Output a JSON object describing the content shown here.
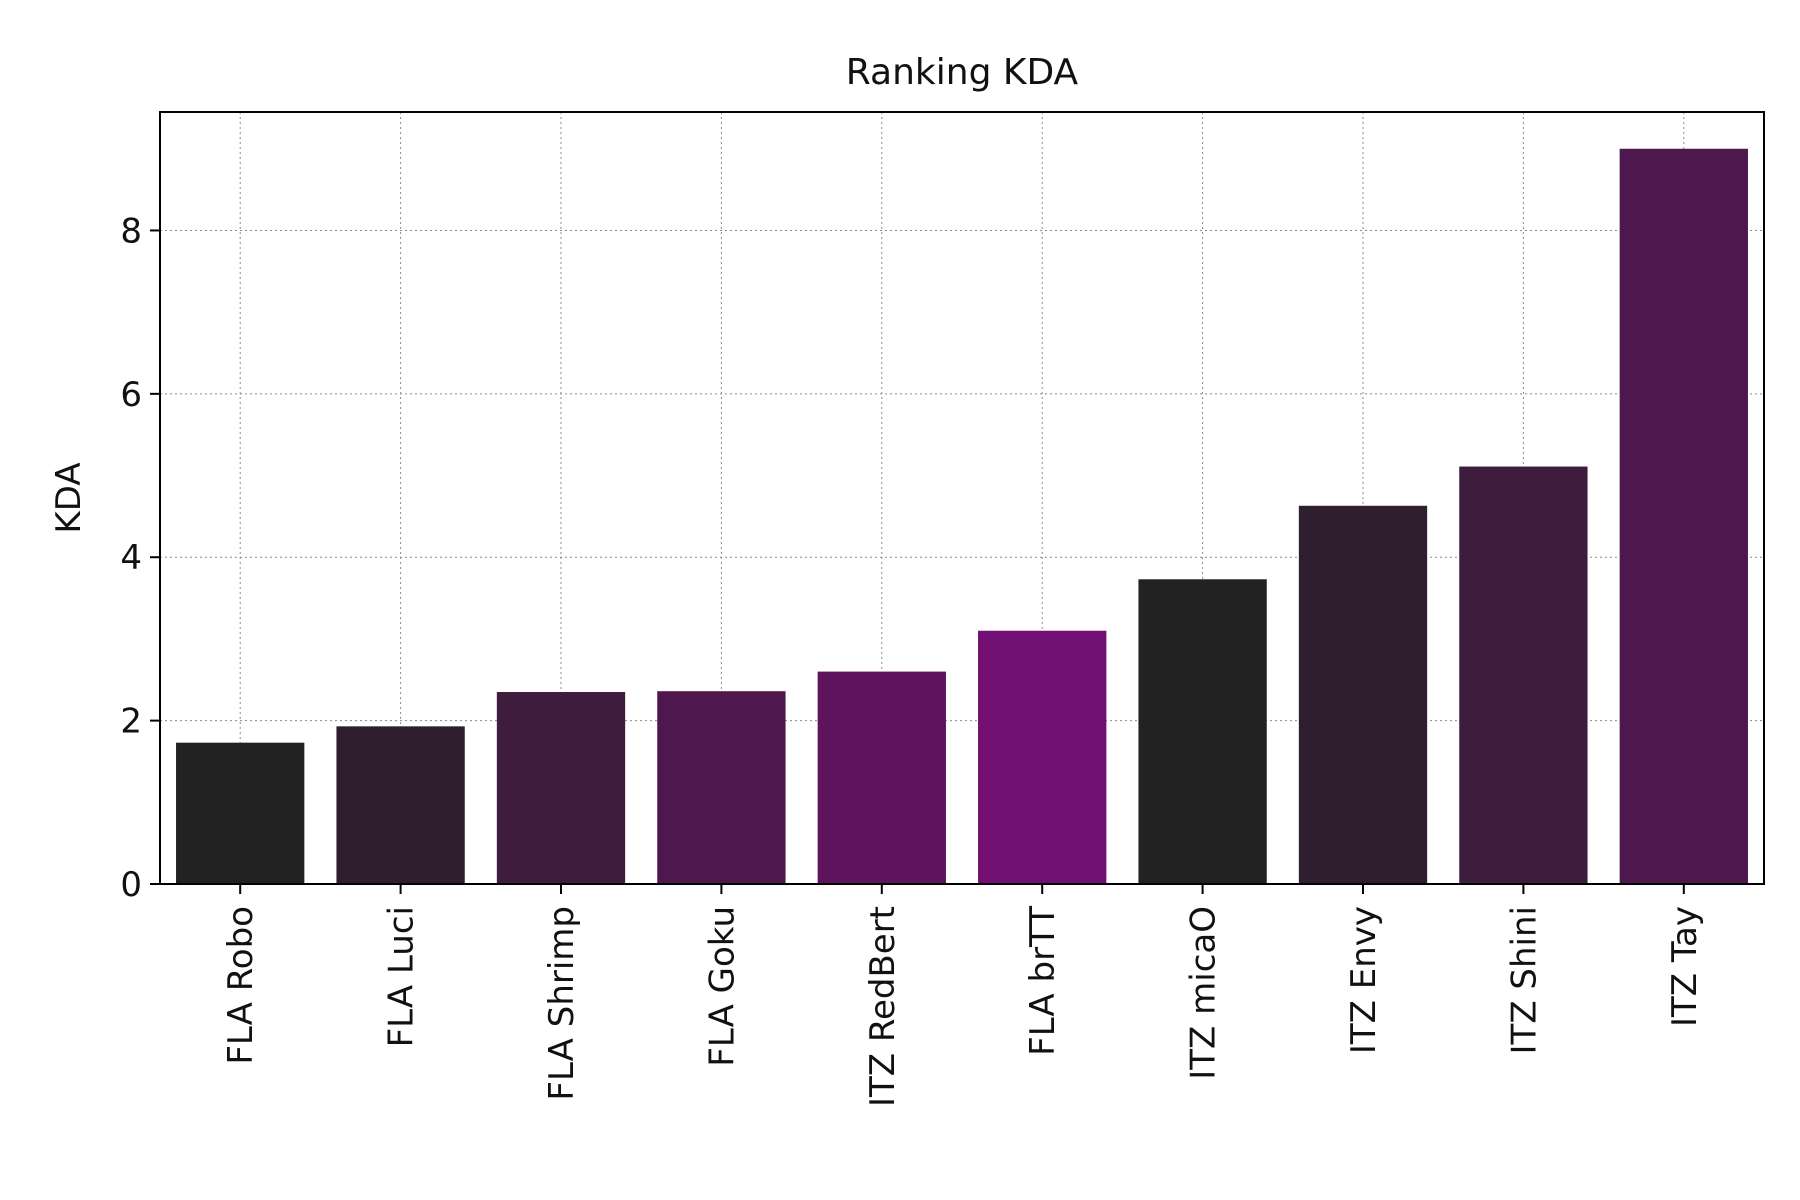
{
  "chart_data": {
    "type": "bar",
    "title": "Ranking KDA",
    "xlabel": "",
    "ylabel": "KDA",
    "categories": [
      "FLA Robo",
      "FLA Luci",
      "FLA Shrimp",
      "FLA Goku",
      "ITZ RedBert",
      "FLA brTT",
      "ITZ micaO",
      "ITZ Envy",
      "ITZ Shini",
      "ITZ Tay"
    ],
    "values": [
      1.73,
      1.93,
      2.35,
      2.36,
      2.6,
      3.1,
      3.73,
      4.63,
      5.11,
      9.0
    ],
    "colors": [
      "#222222",
      "#2f1e2f",
      "#3e1c3e",
      "#4e184e",
      "#5d145d",
      "#720f72",
      "#222222",
      "#2f1e2f",
      "#3e1c3e",
      "#4e184e"
    ],
    "ylim": [
      0,
      9.45
    ],
    "yticks": [
      0,
      2,
      4,
      6,
      8
    ],
    "grid": true,
    "legend": "none"
  }
}
